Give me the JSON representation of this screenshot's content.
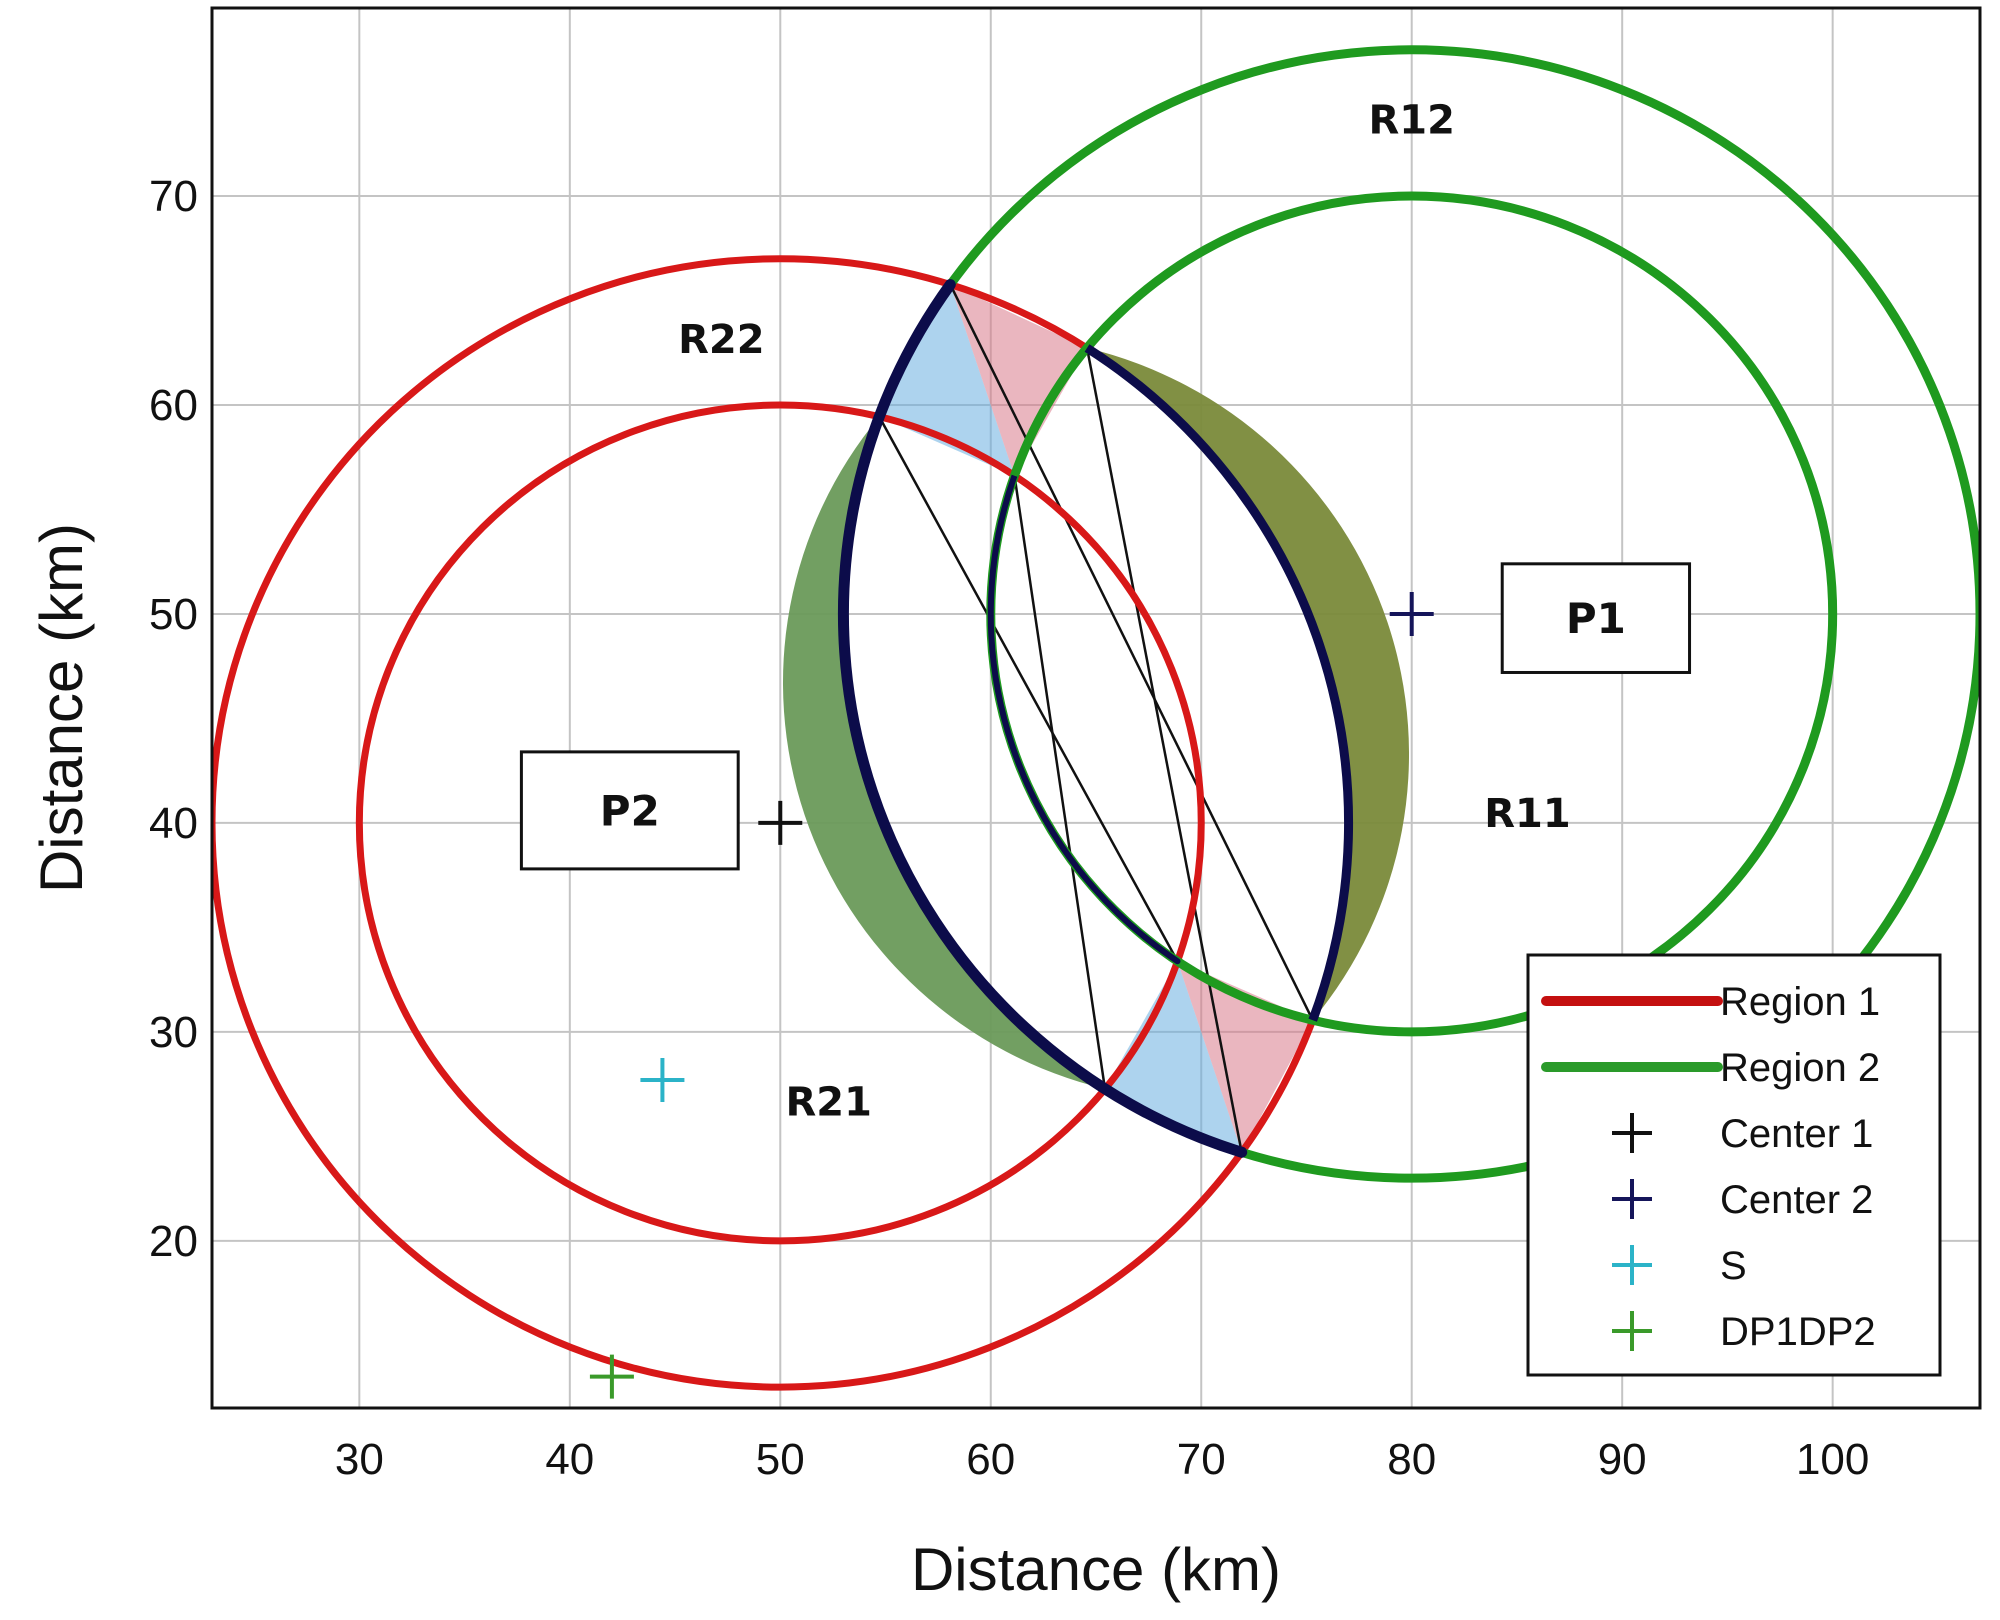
{
  "chart_data": {
    "type": "scatter",
    "title": "",
    "xlabel": "Distance (km)",
    "ylabel": "Distance (km)",
    "xlim": [
      23,
      107
    ],
    "ylim": [
      12,
      79
    ],
    "xticks": [
      30,
      40,
      50,
      60,
      70,
      80,
      90,
      100
    ],
    "yticks": [
      20,
      30,
      40,
      50,
      60,
      70
    ],
    "grid": true,
    "colors": {
      "region1": "#d81818",
      "region2": "#1f9a1f",
      "center1": "#111111",
      "center2": "#15155a",
      "s": "#2bb3c8",
      "dp": "#3a9a2a",
      "intersection_outline": "#0c0c4a"
    },
    "circles": [
      {
        "series": "Region 1",
        "name": "R21",
        "cx": 50,
        "cy": 40,
        "r": 20
      },
      {
        "series": "Region 1",
        "name": "R22",
        "cx": 50,
        "cy": 40,
        "r": 27
      },
      {
        "series": "Region 2",
        "name": "R11",
        "cx": 80,
        "cy": 50,
        "r": 20
      },
      {
        "series": "Region 2",
        "name": "R12",
        "cx": 80,
        "cy": 50,
        "r": 27
      }
    ],
    "points": [
      {
        "series": "Center 1",
        "x": 50,
        "y": 40
      },
      {
        "series": "Center 2",
        "x": 80,
        "y": 50
      },
      {
        "series": "S",
        "x": 44.4,
        "y": 27.7
      },
      {
        "series": "DP1DP2",
        "x": 42,
        "y": 13.5
      }
    ],
    "region_labels": [
      {
        "text": "R12",
        "x": 80,
        "y": 73
      },
      {
        "text": "R22",
        "x": 47.2,
        "y": 62.5
      },
      {
        "text": "R11",
        "x": 85.5,
        "y": 39.8
      },
      {
        "text": "R21",
        "x": 52.3,
        "y": 26
      }
    ],
    "boxes": [
      {
        "text": "P1",
        "x0": 84.3,
        "x1": 93.2,
        "y0": 47.2,
        "y1": 52.4
      },
      {
        "text": "P2",
        "x0": 37.7,
        "x1": 48,
        "y0": 37.8,
        "y1": 43.4
      }
    ],
    "legend": {
      "position": "bottom-right",
      "entries": [
        {
          "label": "Region 1",
          "style": "line",
          "color": "#c41010"
        },
        {
          "label": "Region 2",
          "style": "line",
          "color": "#2a9a2a"
        },
        {
          "label": "Center 1",
          "style": "plus",
          "color": "#111111"
        },
        {
          "label": "Center 2",
          "style": "plus",
          "color": "#15155a"
        },
        {
          "label": "S",
          "style": "plus",
          "color": "#2bb3c8"
        },
        {
          "label": "DP1DP2",
          "style": "plus",
          "color": "#3a9a2a"
        }
      ]
    }
  }
}
